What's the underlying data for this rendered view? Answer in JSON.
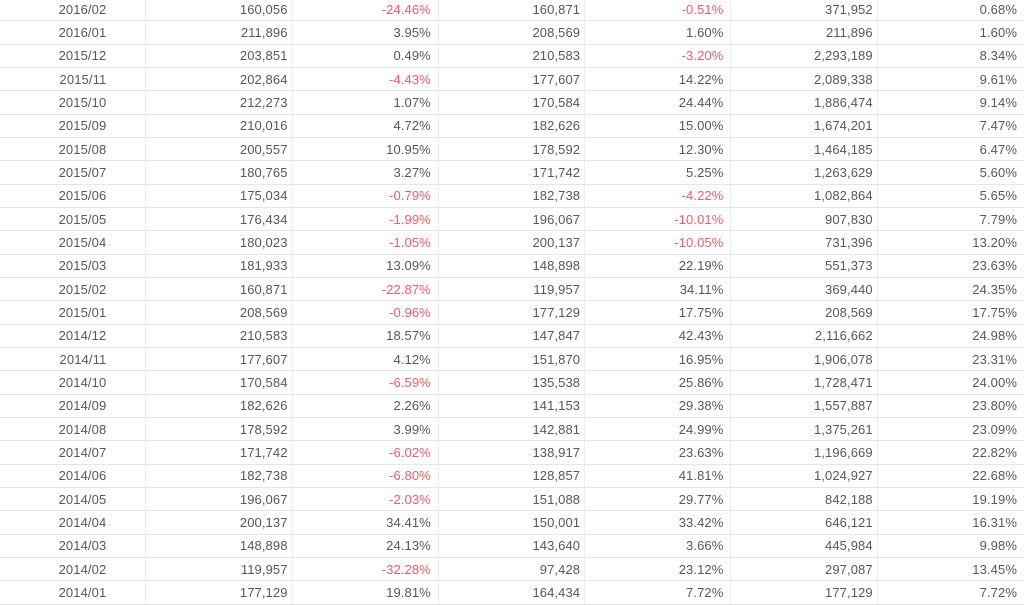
{
  "colors": {
    "text": "#55585c",
    "negative_value": "#f45b66",
    "row_border": "#e4e6e8",
    "column_border": "#ededef",
    "background": "#ffffff"
  },
  "table": {
    "column_kinds": [
      "month",
      "value",
      "percent",
      "value",
      "percent",
      "value",
      "percent"
    ],
    "rows": [
      [
        "2016/02",
        "160,056",
        "-24.46%",
        "160,871",
        "-0.51%",
        "371,952",
        "0.68%"
      ],
      [
        "2016/01",
        "211,896",
        "3.95%",
        "208,569",
        "1.60%",
        "211,896",
        "1.60%"
      ],
      [
        "2015/12",
        "203,851",
        "0.49%",
        "210,583",
        "-3.20%",
        "2,293,189",
        "8.34%"
      ],
      [
        "2015/11",
        "202,864",
        "-4.43%",
        "177,607",
        "14.22%",
        "2,089,338",
        "9.61%"
      ],
      [
        "2015/10",
        "212,273",
        "1.07%",
        "170,584",
        "24.44%",
        "1,886,474",
        "9.14%"
      ],
      [
        "2015/09",
        "210,016",
        "4.72%",
        "182,626",
        "15.00%",
        "1,674,201",
        "7.47%"
      ],
      [
        "2015/08",
        "200,557",
        "10.95%",
        "178,592",
        "12.30%",
        "1,464,185",
        "6.47%"
      ],
      [
        "2015/07",
        "180,765",
        "3.27%",
        "171,742",
        "5.25%",
        "1,263,629",
        "5.60%"
      ],
      [
        "2015/06",
        "175,034",
        "-0.79%",
        "182,738",
        "-4.22%",
        "1,082,864",
        "5.65%"
      ],
      [
        "2015/05",
        "176,434",
        "-1.99%",
        "196,067",
        "-10.01%",
        "907,830",
        "7.79%"
      ],
      [
        "2015/04",
        "180,023",
        "-1.05%",
        "200,137",
        "-10.05%",
        "731,396",
        "13.20%"
      ],
      [
        "2015/03",
        "181,933",
        "13.09%",
        "148,898",
        "22.19%",
        "551,373",
        "23.63%"
      ],
      [
        "2015/02",
        "160,871",
        "-22.87%",
        "119,957",
        "34.11%",
        "369,440",
        "24.35%"
      ],
      [
        "2015/01",
        "208,569",
        "-0.96%",
        "177,129",
        "17.75%",
        "208,569",
        "17.75%"
      ],
      [
        "2014/12",
        "210,583",
        "18.57%",
        "147,847",
        "42.43%",
        "2,116,662",
        "24.98%"
      ],
      [
        "2014/11",
        "177,607",
        "4.12%",
        "151,870",
        "16.95%",
        "1,906,078",
        "23.31%"
      ],
      [
        "2014/10",
        "170,584",
        "-6.59%",
        "135,538",
        "25.86%",
        "1,728,471",
        "24.00%"
      ],
      [
        "2014/09",
        "182,626",
        "2.26%",
        "141,153",
        "29.38%",
        "1,557,887",
        "23.80%"
      ],
      [
        "2014/08",
        "178,592",
        "3.99%",
        "142,881",
        "24.99%",
        "1,375,261",
        "23.09%"
      ],
      [
        "2014/07",
        "171,742",
        "-6.02%",
        "138,917",
        "23.63%",
        "1,196,669",
        "22.82%"
      ],
      [
        "2014/06",
        "182,738",
        "-6.80%",
        "128,857",
        "41.81%",
        "1,024,927",
        "22.68%"
      ],
      [
        "2014/05",
        "196,067",
        "-2.03%",
        "151,088",
        "29.77%",
        "842,188",
        "19.19%"
      ],
      [
        "2014/04",
        "200,137",
        "34.41%",
        "150,001",
        "33.42%",
        "646,121",
        "16.31%"
      ],
      [
        "2014/03",
        "148,898",
        "24.13%",
        "143,640",
        "3.66%",
        "445,984",
        "9.98%"
      ],
      [
        "2014/02",
        "119,957",
        "-32.28%",
        "97,428",
        "23.12%",
        "297,087",
        "13.45%"
      ],
      [
        "2014/01",
        "177,129",
        "19.81%",
        "164,434",
        "7.72%",
        "177,129",
        "7.72%"
      ]
    ]
  }
}
